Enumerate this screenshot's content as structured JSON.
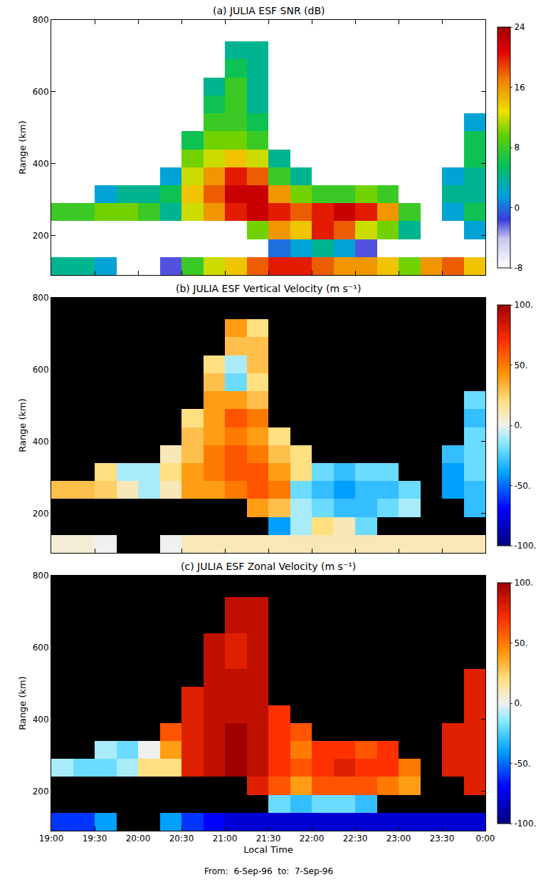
{
  "chart_data": [
    {
      "type": "heatmap",
      "title": "(a) JULIA ESF SNR (dB)",
      "ylabel": "Range (km)",
      "tick_labels": "y",
      "x": [
        19.125,
        19.375,
        19.625,
        19.875,
        20.125,
        20.375,
        20.625,
        20.875,
        21.125,
        21.375,
        21.625,
        21.875,
        22.125,
        22.375,
        22.625,
        22.875,
        23.125,
        23.375,
        23.625,
        23.875
      ],
      "y": [
        115,
        165,
        215,
        265,
        315,
        365,
        415,
        465,
        515,
        565,
        615,
        665,
        715,
        765
      ],
      "z": [
        [
          4,
          4,
          2,
          null,
          null,
          -2,
          8,
          12,
          14,
          18,
          20,
          20,
          18,
          16,
          16,
          14,
          10,
          16,
          18,
          14
        ],
        [
          null,
          null,
          null,
          null,
          null,
          null,
          null,
          null,
          null,
          null,
          0,
          2,
          4,
          2,
          -2,
          null,
          null,
          null,
          null,
          null
        ],
        [
          null,
          null,
          null,
          null,
          null,
          null,
          null,
          null,
          null,
          10,
          16,
          14,
          20,
          18,
          12,
          10,
          4,
          null,
          null,
          2
        ],
        [
          8,
          8,
          10,
          10,
          8,
          4,
          12,
          16,
          20,
          22,
          20,
          18,
          20,
          22,
          20,
          16,
          8,
          null,
          2,
          6
        ],
        [
          null,
          null,
          2,
          4,
          4,
          6,
          14,
          18,
          22,
          22,
          16,
          10,
          8,
          8,
          10,
          8,
          null,
          null,
          4,
          4
        ],
        [
          null,
          null,
          null,
          null,
          null,
          2,
          12,
          16,
          20,
          18,
          8,
          4,
          null,
          null,
          null,
          null,
          null,
          null,
          2,
          4
        ],
        [
          null,
          null,
          null,
          null,
          null,
          null,
          10,
          12,
          14,
          12,
          4,
          null,
          null,
          null,
          null,
          null,
          null,
          null,
          null,
          6
        ],
        [
          null,
          null,
          null,
          null,
          null,
          null,
          6,
          10,
          10,
          8,
          null,
          null,
          null,
          null,
          null,
          null,
          null,
          null,
          null,
          6
        ],
        [
          null,
          null,
          null,
          null,
          null,
          null,
          null,
          8,
          8,
          6,
          null,
          null,
          null,
          null,
          null,
          null,
          null,
          null,
          null,
          2
        ],
        [
          null,
          null,
          null,
          null,
          null,
          null,
          null,
          6,
          8,
          4,
          null,
          null,
          null,
          null,
          null,
          null,
          null,
          null,
          null,
          null
        ],
        [
          null,
          null,
          null,
          null,
          null,
          null,
          null,
          4,
          8,
          4,
          null,
          null,
          null,
          null,
          null,
          null,
          null,
          null,
          null,
          null
        ],
        [
          null,
          null,
          null,
          null,
          null,
          null,
          null,
          null,
          6,
          4,
          null,
          null,
          null,
          null,
          null,
          null,
          null,
          null,
          null,
          null
        ],
        [
          null,
          null,
          null,
          null,
          null,
          null,
          null,
          null,
          4,
          4,
          null,
          null,
          null,
          null,
          null,
          null,
          null,
          null,
          null,
          null
        ],
        [
          null,
          null,
          null,
          null,
          null,
          null,
          null,
          null,
          null,
          null,
          null,
          null,
          null,
          null,
          null,
          null,
          null,
          null,
          null,
          null
        ]
      ],
      "xlim": [
        19,
        24
      ],
      "xticks": [
        {
          "value": 19,
          "label": "19:00"
        },
        {
          "value": 19.5,
          "label": "19:30"
        },
        {
          "value": 20,
          "label": "20:00"
        },
        {
          "value": 20.5,
          "label": "20:30"
        },
        {
          "value": 21,
          "label": "21:00"
        },
        {
          "value": 21.5,
          "label": "21:30"
        },
        {
          "value": 22,
          "label": "22:00"
        },
        {
          "value": 22.5,
          "label": "22:30"
        },
        {
          "value": 23,
          "label": "23:00"
        },
        {
          "value": 23.5,
          "label": "23:30"
        },
        {
          "value": 24,
          "label": "0:00"
        }
      ],
      "ylim": [
        90,
        800
      ],
      "yticks": [
        200,
        400,
        600,
        800
      ],
      "zlim": [
        -8,
        24
      ],
      "zticks": [
        -8,
        0,
        8,
        16,
        24
      ]
    },
    {
      "type": "heatmap",
      "title": "(b) JULIA ESF Vertical Velocity (m s⁻¹)",
      "ylabel": "Range (km)",
      "tick_labels": "y",
      "x": [
        19.125,
        19.375,
        19.625,
        19.875,
        20.125,
        20.375,
        20.625,
        20.875,
        21.125,
        21.375,
        21.625,
        21.875,
        22.125,
        22.375,
        22.625,
        22.875,
        23.125,
        23.375,
        23.625,
        23.875
      ],
      "y": [
        115,
        165,
        215,
        265,
        315,
        365,
        415,
        465,
        515,
        565,
        615,
        665,
        715,
        765
      ],
      "z": [
        [
          5,
          5,
          0,
          null,
          null,
          0,
          10,
          10,
          10,
          10,
          10,
          10,
          10,
          10,
          10,
          10,
          10,
          10,
          10,
          10
        ],
        [
          null,
          null,
          null,
          null,
          null,
          null,
          null,
          null,
          null,
          null,
          -40,
          -10,
          20,
          10,
          -20,
          null,
          null,
          null,
          null,
          null
        ],
        [
          null,
          null,
          null,
          null,
          null,
          null,
          null,
          null,
          null,
          40,
          30,
          -10,
          -20,
          -30,
          -30,
          -20,
          -10,
          null,
          null,
          -30
        ],
        [
          30,
          30,
          25,
          10,
          -10,
          10,
          40,
          40,
          50,
          60,
          50,
          -20,
          -30,
          -40,
          -30,
          -30,
          -20,
          null,
          -40,
          -30
        ],
        [
          null,
          null,
          20,
          -10,
          -10,
          20,
          40,
          50,
          60,
          60,
          40,
          20,
          -20,
          -30,
          -20,
          -20,
          null,
          null,
          -40,
          -20
        ],
        [
          null,
          null,
          null,
          null,
          null,
          10,
          30,
          50,
          60,
          50,
          30,
          20,
          null,
          null,
          null,
          null,
          null,
          null,
          -30,
          -20
        ],
        [
          null,
          null,
          null,
          null,
          null,
          null,
          30,
          40,
          50,
          40,
          20,
          null,
          null,
          null,
          null,
          null,
          null,
          null,
          null,
          -20
        ],
        [
          null,
          null,
          null,
          null,
          null,
          null,
          20,
          40,
          60,
          50,
          null,
          null,
          null,
          null,
          null,
          null,
          null,
          null,
          null,
          -30
        ],
        [
          null,
          null,
          null,
          null,
          null,
          null,
          null,
          40,
          40,
          30,
          null,
          null,
          null,
          null,
          null,
          null,
          null,
          null,
          null,
          -20
        ],
        [
          null,
          null,
          null,
          null,
          null,
          null,
          null,
          30,
          -20,
          20,
          null,
          null,
          null,
          null,
          null,
          null,
          null,
          null,
          null,
          null
        ],
        [
          null,
          null,
          null,
          null,
          null,
          null,
          null,
          20,
          -10,
          30,
          null,
          null,
          null,
          null,
          null,
          null,
          null,
          null,
          null,
          null
        ],
        [
          null,
          null,
          null,
          null,
          null,
          null,
          null,
          null,
          30,
          30,
          null,
          null,
          null,
          null,
          null,
          null,
          null,
          null,
          null,
          null
        ],
        [
          null,
          null,
          null,
          null,
          null,
          null,
          null,
          null,
          40,
          20,
          null,
          null,
          null,
          null,
          null,
          null,
          null,
          null,
          null,
          null
        ],
        [
          null,
          null,
          null,
          null,
          null,
          null,
          null,
          null,
          null,
          null,
          null,
          null,
          null,
          null,
          null,
          null,
          null,
          null,
          null,
          null
        ]
      ],
      "xlim": [
        19,
        24
      ],
      "xticks": [
        {
          "value": 19,
          "label": "19:00"
        },
        {
          "value": 19.5,
          "label": "19:30"
        },
        {
          "value": 20,
          "label": "20:00"
        },
        {
          "value": 20.5,
          "label": "20:30"
        },
        {
          "value": 21,
          "label": "21:00"
        },
        {
          "value": 21.5,
          "label": "21:30"
        },
        {
          "value": 22,
          "label": "22:00"
        },
        {
          "value": 22.5,
          "label": "22:30"
        },
        {
          "value": 23,
          "label": "23:00"
        },
        {
          "value": 23.5,
          "label": "23:30"
        },
        {
          "value": 24,
          "label": "0:00"
        }
      ],
      "ylim": [
        90,
        800
      ],
      "yticks": [
        200,
        400,
        600,
        800
      ],
      "zlim": [
        -100,
        100
      ],
      "zticks": [
        {
          "value": -100,
          "label": "-100."
        },
        {
          "value": -50,
          "label": "-50."
        },
        {
          "value": 0,
          "label": "0."
        },
        {
          "value": 50,
          "label": "50."
        },
        {
          "value": 100,
          "label": "100."
        }
      ]
    },
    {
      "type": "heatmap",
      "title": "(c) JULIA ESF Zonal Velocity (m s⁻¹)",
      "ylabel": "Range (km)",
      "xlabel": "Local Time",
      "annotations": [
        "From:  6-Sep-96  to:  7-Sep-96"
      ],
      "x": [
        19.125,
        19.375,
        19.625,
        19.875,
        20.125,
        20.375,
        20.625,
        20.875,
        21.125,
        21.375,
        21.625,
        21.875,
        22.125,
        22.375,
        22.625,
        22.875,
        23.125,
        23.375,
        23.625,
        23.875
      ],
      "y": [
        115,
        165,
        215,
        265,
        315,
        365,
        415,
        465,
        515,
        565,
        615,
        665,
        715,
        765
      ],
      "z": [
        [
          -60,
          -60,
          -40,
          null,
          null,
          -40,
          -60,
          -70,
          -80,
          -80,
          -80,
          -80,
          -80,
          -80,
          -80,
          -80,
          -80,
          -80,
          -80,
          -80
        ],
        [
          null,
          null,
          null,
          null,
          null,
          null,
          null,
          null,
          null,
          null,
          -20,
          -30,
          -20,
          -20,
          -30,
          null,
          null,
          null,
          null,
          null
        ],
        [
          null,
          null,
          null,
          null,
          null,
          null,
          null,
          null,
          null,
          80,
          60,
          40,
          60,
          60,
          60,
          50,
          40,
          null,
          null,
          80
        ],
        [
          -10,
          -20,
          -20,
          -10,
          20,
          20,
          80,
          90,
          100,
          90,
          70,
          60,
          70,
          80,
          70,
          70,
          50,
          null,
          80,
          80
        ],
        [
          null,
          null,
          -10,
          -20,
          0,
          40,
          80,
          90,
          100,
          90,
          70,
          50,
          70,
          70,
          60,
          70,
          null,
          null,
          80,
          80
        ],
        [
          null,
          null,
          null,
          null,
          null,
          60,
          80,
          90,
          100,
          90,
          70,
          60,
          null,
          null,
          null,
          null,
          null,
          null,
          80,
          80
        ],
        [
          null,
          null,
          null,
          null,
          null,
          null,
          80,
          90,
          90,
          90,
          70,
          null,
          null,
          null,
          null,
          null,
          null,
          null,
          null,
          80
        ],
        [
          null,
          null,
          null,
          null,
          null,
          null,
          80,
          90,
          90,
          90,
          null,
          null,
          null,
          null,
          null,
          null,
          null,
          null,
          null,
          80
        ],
        [
          null,
          null,
          null,
          null,
          null,
          null,
          null,
          90,
          90,
          90,
          null,
          null,
          null,
          null,
          null,
          null,
          null,
          null,
          null,
          80
        ],
        [
          null,
          null,
          null,
          null,
          null,
          null,
          null,
          90,
          80,
          90,
          null,
          null,
          null,
          null,
          null,
          null,
          null,
          null,
          null,
          null
        ],
        [
          null,
          null,
          null,
          null,
          null,
          null,
          null,
          90,
          80,
          90,
          null,
          null,
          null,
          null,
          null,
          null,
          null,
          null,
          null,
          null
        ],
        [
          null,
          null,
          null,
          null,
          null,
          null,
          null,
          null,
          90,
          90,
          null,
          null,
          null,
          null,
          null,
          null,
          null,
          null,
          null,
          null
        ],
        [
          null,
          null,
          null,
          null,
          null,
          null,
          null,
          null,
          90,
          90,
          null,
          null,
          null,
          null,
          null,
          null,
          null,
          null,
          null,
          null
        ],
        [
          null,
          null,
          null,
          null,
          null,
          null,
          null,
          null,
          null,
          null,
          null,
          null,
          null,
          null,
          null,
          null,
          null,
          null,
          null,
          null
        ]
      ],
      "xlim": [
        19,
        24
      ],
      "xticks": [
        {
          "value": 19,
          "label": "19:00"
        },
        {
          "value": 19.5,
          "label": "19:30"
        },
        {
          "value": 20,
          "label": "20:00"
        },
        {
          "value": 20.5,
          "label": "20:30"
        },
        {
          "value": 21,
          "label": "21:00"
        },
        {
          "value": 21.5,
          "label": "21:30"
        },
        {
          "value": 22,
          "label": "22:00"
        },
        {
          "value": 22.5,
          "label": "22:30"
        },
        {
          "value": 23,
          "label": "23:00"
        },
        {
          "value": 23.5,
          "label": "23:30"
        },
        {
          "value": 24,
          "label": "0:00"
        }
      ],
      "ylim": [
        90,
        800
      ],
      "yticks": [
        200,
        400,
        600,
        800
      ],
      "zlim": [
        -100,
        100
      ],
      "zticks": [
        {
          "value": -100,
          "label": "-100."
        },
        {
          "value": -50,
          "label": "-50."
        },
        {
          "value": 0,
          "label": "0."
        },
        {
          "value": 50,
          "label": "50."
        },
        {
          "value": 100,
          "label": "100."
        }
      ]
    }
  ]
}
